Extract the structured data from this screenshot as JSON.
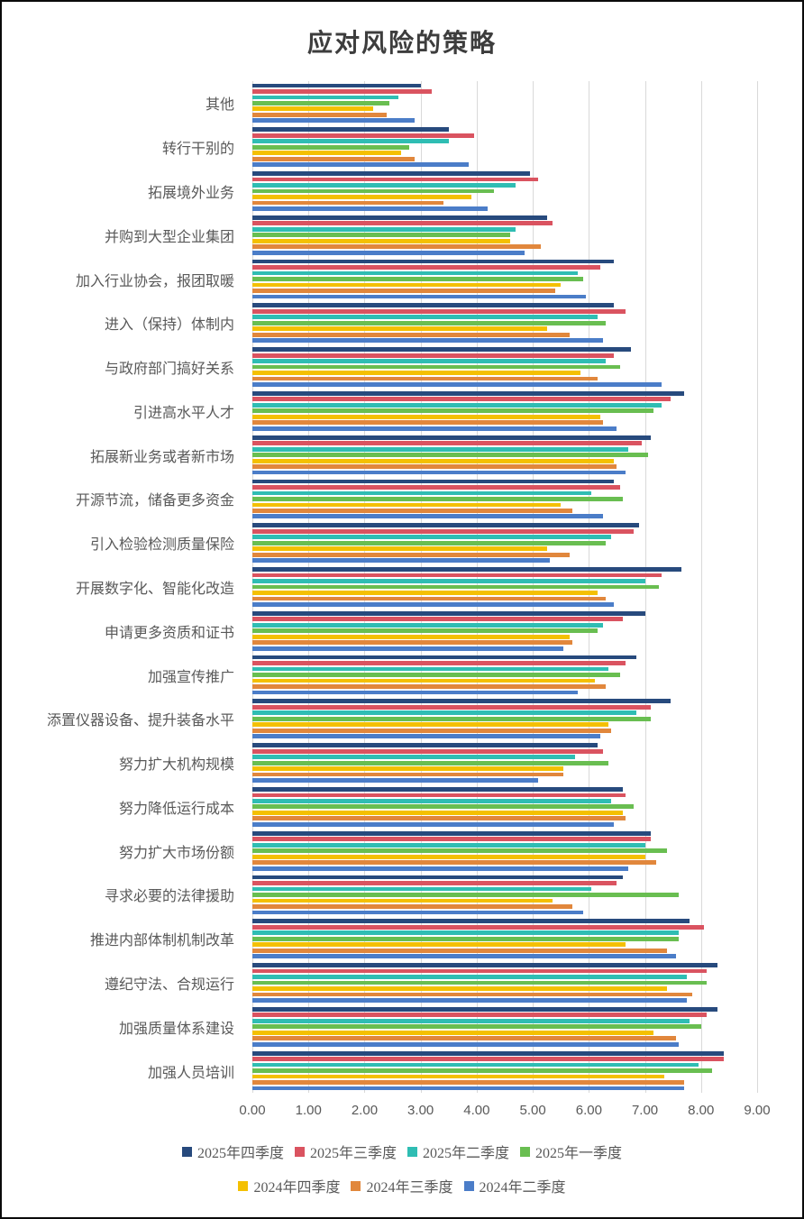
{
  "chart_data": {
    "type": "bar",
    "orientation": "horizontal",
    "title": "应对风险的策略",
    "xlabel": "",
    "ylabel": "",
    "xlim": [
      0,
      9
    ],
    "x_ticks": [
      "0.00",
      "1.00",
      "2.00",
      "3.00",
      "4.00",
      "5.00",
      "6.00",
      "7.00",
      "8.00",
      "9.00"
    ],
    "grid": true,
    "legend_position": "bottom",
    "legend_row_split": [
      4,
      3
    ],
    "categories": [
      "其他",
      "转行干别的",
      "拓展境外业务",
      "并购到大型企业集团",
      "加入行业协会，报团取暖",
      "进入（保持）体制内",
      "与政府部门搞好关系",
      "引进高水平人才",
      "拓展新业务或者新市场",
      "开源节流，储备更多资金",
      "引入检验检测质量保险",
      "开展数字化、智能化改造",
      "申请更多资质和证书",
      "加强宣传推广",
      "添置仪器设备、提升装备水平",
      "努力扩大机构规模",
      "努力降低运行成本",
      "努力扩大市场份额",
      "寻求必要的法律援助",
      "推进内部体制机制改革",
      "遵纪守法、合规运行",
      "加强质量体系建设",
      "加强人员培训"
    ],
    "series": [
      {
        "name": "2025年四季度",
        "color": "#274A7D",
        "values": [
          3.0,
          3.5,
          4.95,
          5.25,
          6.45,
          6.45,
          6.75,
          7.7,
          7.1,
          6.45,
          6.9,
          7.65,
          7.0,
          6.85,
          7.45,
          6.15,
          6.6,
          7.1,
          6.6,
          7.8,
          8.3,
          8.3,
          8.4
        ]
      },
      {
        "name": "2025年三季度",
        "color": "#DA5360",
        "values": [
          3.2,
          3.95,
          5.1,
          5.35,
          6.2,
          6.65,
          6.45,
          7.45,
          6.95,
          6.55,
          6.8,
          7.3,
          6.6,
          6.65,
          7.1,
          6.25,
          6.65,
          7.1,
          6.5,
          8.05,
          8.1,
          8.1,
          8.4
        ]
      },
      {
        "name": "2025年二季度",
        "color": "#2FBDB3",
        "values": [
          2.6,
          3.5,
          4.7,
          4.7,
          5.8,
          6.15,
          6.3,
          7.3,
          6.7,
          6.05,
          6.4,
          7.0,
          6.25,
          6.35,
          6.85,
          5.75,
          6.4,
          7.0,
          6.05,
          7.6,
          7.75,
          7.8,
          7.95
        ]
      },
      {
        "name": "2025年一季度",
        "color": "#69BE51",
        "values": [
          2.45,
          2.8,
          4.3,
          4.6,
          5.9,
          6.3,
          6.55,
          7.15,
          7.05,
          6.6,
          6.3,
          7.25,
          6.15,
          6.55,
          7.1,
          6.35,
          6.8,
          7.4,
          7.6,
          7.6,
          8.1,
          8.0,
          8.2
        ]
      },
      {
        "name": "2024年四季度",
        "color": "#F4C002",
        "values": [
          2.15,
          2.65,
          3.9,
          4.6,
          5.5,
          5.25,
          5.85,
          6.2,
          6.45,
          5.5,
          5.25,
          6.15,
          5.65,
          6.1,
          6.35,
          5.55,
          6.6,
          7.0,
          5.35,
          6.65,
          7.4,
          7.15,
          7.35
        ]
      },
      {
        "name": "2024年三季度",
        "color": "#E1873C",
        "values": [
          2.4,
          2.9,
          3.4,
          5.15,
          5.4,
          5.65,
          6.15,
          6.25,
          6.5,
          5.7,
          5.65,
          6.3,
          5.7,
          6.3,
          6.4,
          5.55,
          6.65,
          7.2,
          5.7,
          7.4,
          7.85,
          7.55,
          7.7
        ]
      },
      {
        "name": "2024年二季度",
        "color": "#4B7DC8",
        "values": [
          2.9,
          3.85,
          4.2,
          4.85,
          5.95,
          6.25,
          7.3,
          6.5,
          6.65,
          6.25,
          5.3,
          6.45,
          5.55,
          5.8,
          6.2,
          5.1,
          6.45,
          6.7,
          5.9,
          7.55,
          7.75,
          7.6,
          7.7
        ]
      }
    ]
  }
}
